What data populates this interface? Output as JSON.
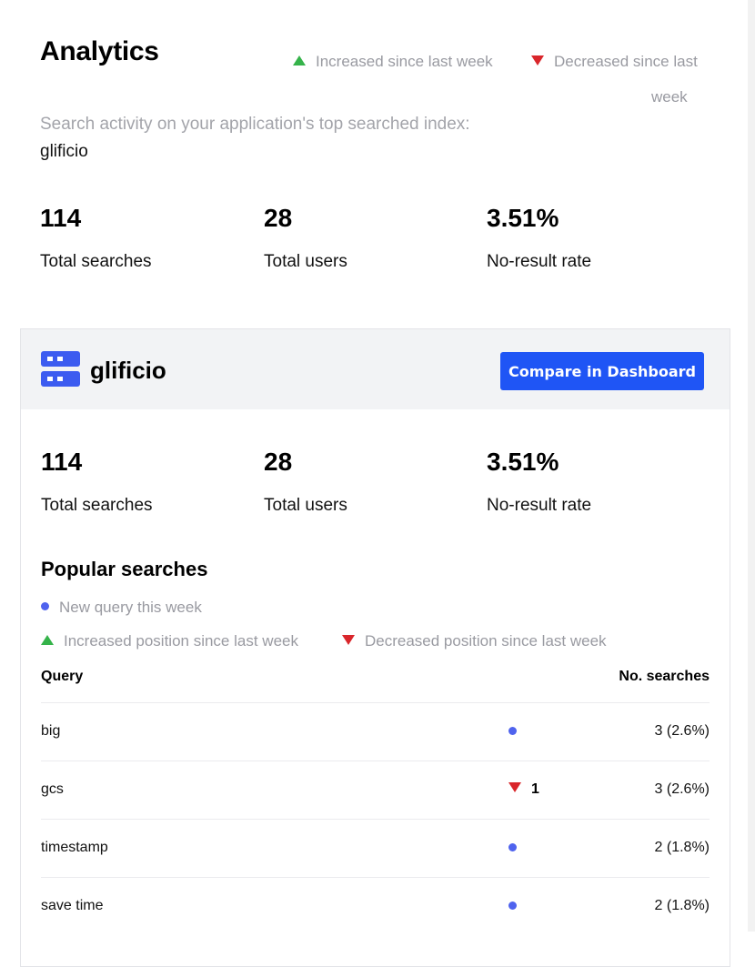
{
  "header": {
    "title": "Analytics",
    "legend_increased": "Increased since last week",
    "legend_decreased_line1": "Decreased since last",
    "legend_decreased_line2": "week",
    "subtitle": "Search activity on your application's top searched index:",
    "index_name": "glificio"
  },
  "summary": {
    "total_searches": "114",
    "total_searches_label": "Total searches",
    "total_users": "28",
    "total_users_label": "Total users",
    "no_result_rate": "3.51%",
    "no_result_rate_label": "No-result rate"
  },
  "index_card": {
    "name": "glificio",
    "compare_button": "Compare in Dashboard",
    "icon": "database-icon",
    "total_searches": "114",
    "total_searches_label": "Total searches",
    "total_users": "28",
    "total_users_label": "Total users",
    "no_result_rate": "3.51%",
    "no_result_rate_label": "No-result rate",
    "popular": {
      "title": "Popular searches",
      "legend_new": "New query this week",
      "legend_increased": "Increased position since last week",
      "legend_decreased": "Decreased position since last week",
      "col_query": "Query",
      "col_searches": "No. searches",
      "rows": [
        {
          "query": "big",
          "marker": "new",
          "change": "",
          "searches": "3 (2.6%)"
        },
        {
          "query": "gcs",
          "marker": "decreased",
          "change": "1",
          "searches": "3 (2.6%)"
        },
        {
          "query": "timestamp",
          "marker": "new",
          "change": "",
          "searches": "2 (1.8%)"
        },
        {
          "query": "save time",
          "marker": "new",
          "change": "",
          "searches": "2 (1.8%)"
        }
      ]
    }
  },
  "colors": {
    "increase": "#35b34a",
    "decrease": "#d9262b",
    "new_query": "#4f63ee",
    "primary_button": "#1f55f5"
  }
}
